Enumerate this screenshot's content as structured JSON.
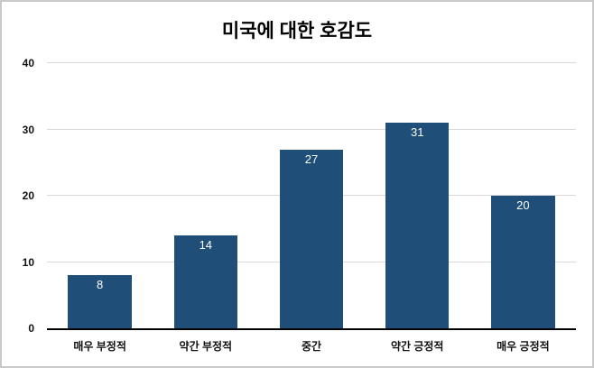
{
  "chart_data": {
    "type": "bar",
    "title": "미국에 대한 호감도",
    "categories": [
      "매우 부정적",
      "약간 부정적",
      "중간",
      "약간 긍정적",
      "매우 긍정적"
    ],
    "values": [
      8,
      14,
      27,
      31,
      20
    ],
    "xlabel": "",
    "ylabel": "",
    "ylim": [
      0,
      40
    ],
    "yticks": [
      0,
      10,
      20,
      30,
      40
    ],
    "grid": true,
    "legend": "none",
    "bar_color": "#1f4e79",
    "value_label_color": "#ffffff",
    "gridline_color": "#d9d9d9",
    "axis_line_color": "#000000"
  }
}
